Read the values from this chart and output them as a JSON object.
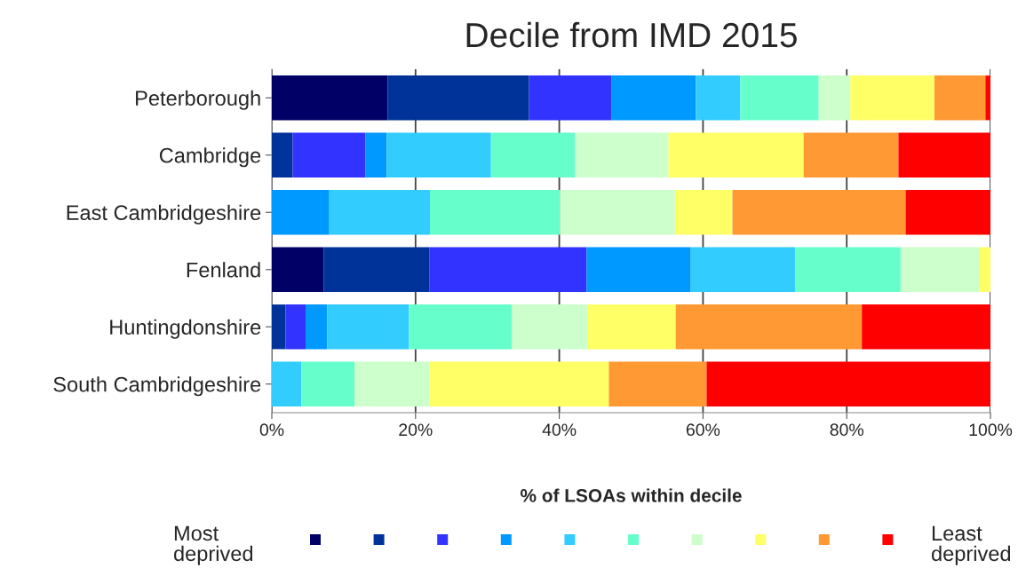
{
  "chart_data": {
    "type": "bar",
    "orientation": "horizontal",
    "stacked": true,
    "title": "Decile from IMD 2015",
    "xlabel": "% of LSOAs within decile",
    "categories": [
      "Peterborough",
      "Cambridge",
      "East Cambridgeshire",
      "Fenland",
      "Huntingdonshire",
      "South Cambridgeshire"
    ],
    "series": [
      {
        "color": "#000066",
        "values": [
          16.1,
          0,
          0,
          7.2,
          0,
          0
        ]
      },
      {
        "color": "#003399",
        "values": [
          19.7,
          2.9,
          0,
          14.7,
          1.9,
          0
        ]
      },
      {
        "color": "#3333ff",
        "values": [
          11.5,
          10.1,
          0,
          21.9,
          2.8,
          0
        ]
      },
      {
        "color": "#0099ff",
        "values": [
          11.7,
          3.0,
          8.0,
          14.5,
          3.0,
          0
        ]
      },
      {
        "color": "#33ccff",
        "values": [
          6.2,
          14.5,
          14.0,
          14.5,
          11.4,
          4.1
        ]
      },
      {
        "color": "#66ffcc",
        "values": [
          10.9,
          11.7,
          18.1,
          14.7,
          14.3,
          7.4
        ]
      },
      {
        "color": "#ccffcc",
        "values": [
          4.4,
          13.0,
          16.0,
          10.9,
          10.5,
          10.4
        ]
      },
      {
        "color": "#ffff66",
        "values": [
          11.7,
          18.8,
          8.0,
          1.6,
          12.3,
          25.0
        ]
      },
      {
        "color": "#ff9933",
        "values": [
          7.1,
          13.2,
          24.1,
          0,
          25.9,
          13.6
        ]
      },
      {
        "color": "#ff0000",
        "values": [
          0.7,
          12.8,
          11.8,
          0,
          17.9,
          39.5
        ]
      }
    ],
    "xlim": [
      0,
      100
    ],
    "xticks": [
      {
        "value": 0,
        "label": "0%"
      },
      {
        "value": 20,
        "label": "20%"
      },
      {
        "value": 40,
        "label": "40%"
      },
      {
        "value": 60,
        "label": "60%"
      },
      {
        "value": 80,
        "label": "80%"
      },
      {
        "value": 100,
        "label": "100%"
      }
    ],
    "grid": "x",
    "annotations": [
      "Most\ndeprived",
      "Least\ndeprived"
    ]
  }
}
